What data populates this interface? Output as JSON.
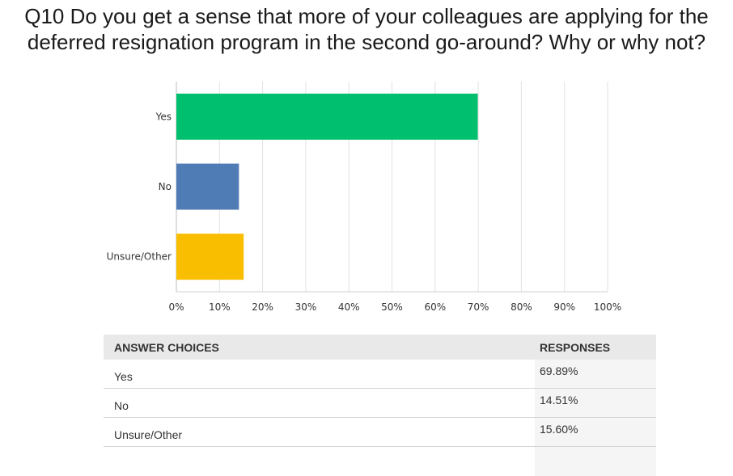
{
  "title_line1": "Q10 Do you get a sense that more of your colleagues are applying for the",
  "title_line2": "deferred resignation program in the second go-around? Why or why not?",
  "chart_data": {
    "type": "bar",
    "orientation": "horizontal",
    "categories": [
      "Yes",
      "No",
      "Unsure/Other"
    ],
    "values": [
      69.89,
      14.51,
      15.6
    ],
    "colors": [
      "#00bf6f",
      "#507cb6",
      "#f9be00"
    ],
    "xlim": [
      0,
      100
    ],
    "xticks": [
      "0%",
      "10%",
      "20%",
      "30%",
      "40%",
      "50%",
      "60%",
      "70%",
      "80%",
      "90%",
      "100%"
    ],
    "grid": true
  },
  "table": {
    "header_choice": "ANSWER CHOICES",
    "header_responses": "RESPONSES",
    "rows": [
      {
        "choice": "Yes",
        "response": "69.89%"
      },
      {
        "choice": "No",
        "response": "14.51%"
      },
      {
        "choice": "Unsure/Other",
        "response": "15.60%"
      }
    ]
  }
}
